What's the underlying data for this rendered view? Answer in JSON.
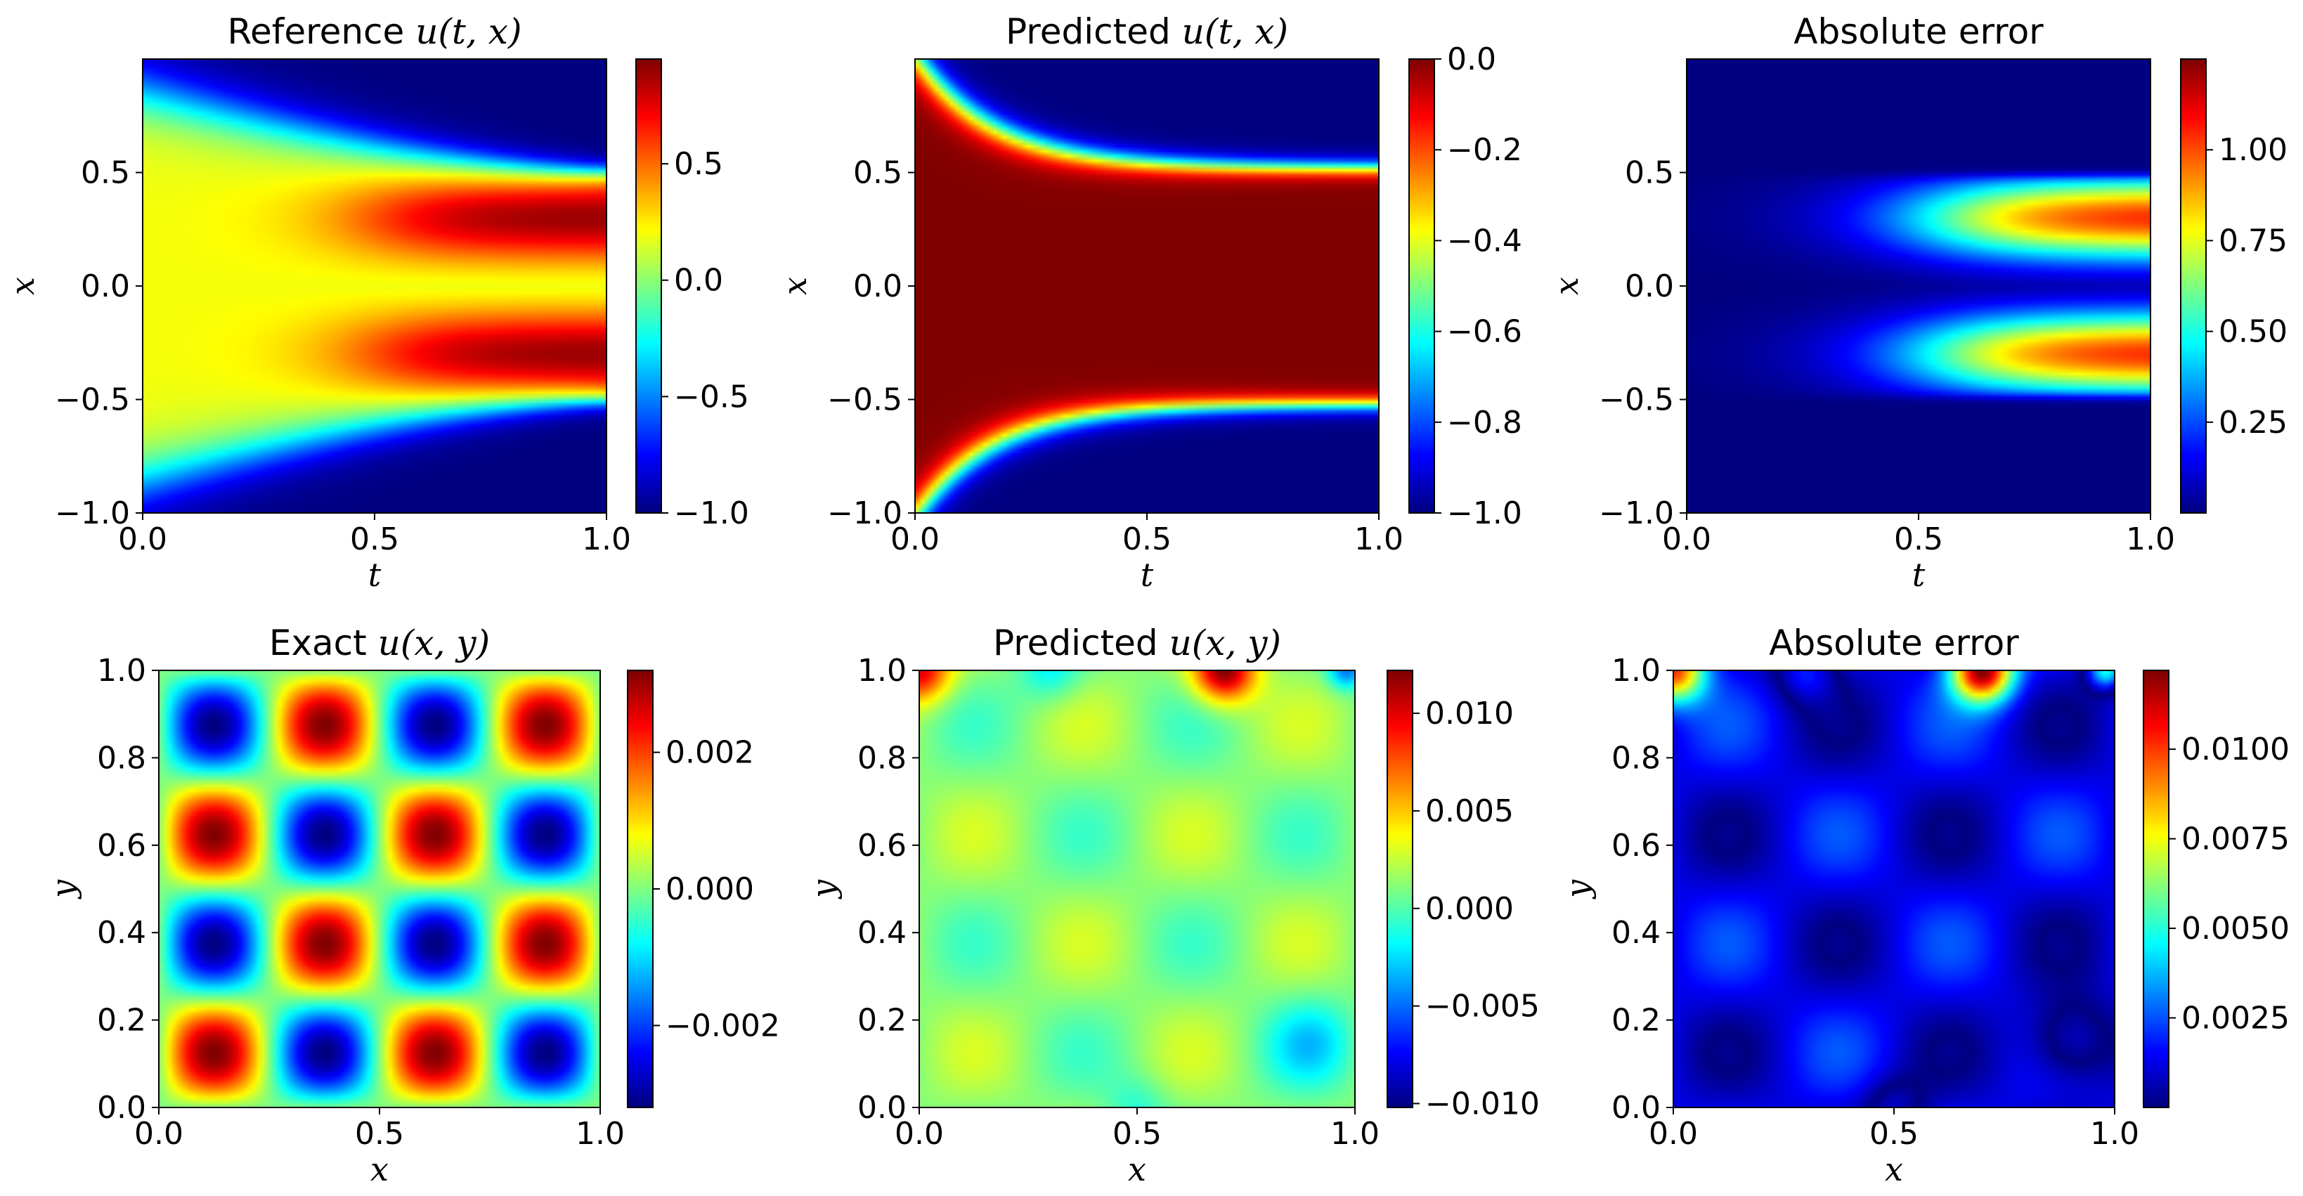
{
  "figure": {
    "description": "Six heatmap panels: two PDE benchmark problems; reference/exact solution, predicted solution and absolute error, each with a jet colorbar"
  },
  "colormap": "jet",
  "chart_data": [
    {
      "type": "heatmap",
      "id": "ref_tx",
      "title_prefix": "Reference ",
      "title_math": "u(t, x)",
      "xlabel": "t",
      "ylabel": "x",
      "xlim": [
        0.0,
        1.0
      ],
      "ylim": [
        -1.0,
        1.0
      ],
      "xticks": [
        "0.0",
        "0.5",
        "1.0"
      ],
      "xtick_values": [
        0.0,
        0.5,
        1.0
      ],
      "yticks": [
        "−1.0",
        "−0.5",
        "0.0",
        "0.5"
      ],
      "ytick_values": [
        -1.0,
        -0.5,
        0.0,
        0.5
      ],
      "clim": [
        -1.0,
        0.95
      ],
      "cbar_ticks": [
        "−1.0",
        "−0.5",
        "0.0",
        "0.5"
      ],
      "cbar_tick_values": [
        -1.0,
        -0.5,
        0.0,
        0.5
      ]
    },
    {
      "type": "heatmap",
      "id": "pred_tx",
      "title_prefix": "Predicted ",
      "title_math": "u(t, x)",
      "xlabel": "t",
      "ylabel": "x",
      "xlim": [
        0.0,
        1.0
      ],
      "ylim": [
        -1.0,
        1.0
      ],
      "xticks": [
        "0.0",
        "0.5",
        "1.0"
      ],
      "xtick_values": [
        0.0,
        0.5,
        1.0
      ],
      "yticks": [
        "−1.0",
        "−0.5",
        "0.0",
        "0.5"
      ],
      "ytick_values": [
        -1.0,
        -0.5,
        0.0,
        0.5
      ],
      "clim": [
        -1.0,
        0.0
      ],
      "cbar_ticks": [
        "−1.0",
        "−0.8",
        "−0.6",
        "−0.4",
        "−0.2",
        "0.0"
      ],
      "cbar_tick_values": [
        -1.0,
        -0.8,
        -0.6,
        -0.4,
        -0.2,
        0.0
      ]
    },
    {
      "type": "heatmap",
      "id": "err_tx",
      "title_prefix": "Absolute error",
      "title_math": "",
      "xlabel": "t",
      "ylabel": "x",
      "xlim": [
        0.0,
        1.0
      ],
      "ylim": [
        -1.0,
        1.0
      ],
      "xticks": [
        "0.0",
        "0.5",
        "1.0"
      ],
      "xtick_values": [
        0.0,
        0.5,
        1.0
      ],
      "yticks": [
        "−1.0",
        "−0.5",
        "0.0",
        "0.5"
      ],
      "ytick_values": [
        -1.0,
        -0.5,
        0.0,
        0.5
      ],
      "clim": [
        0.0,
        1.25
      ],
      "cbar_ticks": [
        "0.25",
        "0.50",
        "0.75",
        "1.00"
      ],
      "cbar_tick_values": [
        0.25,
        0.5,
        0.75,
        1.0
      ]
    },
    {
      "type": "heatmap",
      "id": "exact_xy",
      "title_prefix": "Exact ",
      "title_math": "u(x, y)",
      "xlabel": "x",
      "ylabel": "y",
      "xlim": [
        0.0,
        1.0
      ],
      "ylim": [
        0.0,
        1.0
      ],
      "xticks": [
        "0.0",
        "0.5",
        "1.0"
      ],
      "xtick_values": [
        0.0,
        0.5,
        1.0
      ],
      "yticks": [
        "0.0",
        "0.2",
        "0.4",
        "0.6",
        "0.8",
        "1.0"
      ],
      "ytick_values": [
        0.0,
        0.2,
        0.4,
        0.6,
        0.8,
        1.0
      ],
      "clim": [
        -0.0032,
        0.0032
      ],
      "cbar_ticks": [
        "−0.002",
        "0.000",
        "0.002"
      ],
      "cbar_tick_values": [
        -0.002,
        0.0,
        0.002
      ]
    },
    {
      "type": "heatmap",
      "id": "pred_xy",
      "title_prefix": "Predicted ",
      "title_math": "u(x, y)",
      "xlabel": "x",
      "ylabel": "y",
      "xlim": [
        0.0,
        1.0
      ],
      "ylim": [
        0.0,
        1.0
      ],
      "xticks": [
        "0.0",
        "0.5",
        "1.0"
      ],
      "xtick_values": [
        0.0,
        0.5,
        1.0
      ],
      "yticks": [
        "0.0",
        "0.2",
        "0.4",
        "0.6",
        "0.8",
        "1.0"
      ],
      "ytick_values": [
        0.0,
        0.2,
        0.4,
        0.6,
        0.8,
        1.0
      ],
      "clim": [
        -0.0102,
        0.0122
      ],
      "cbar_ticks": [
        "−0.010",
        "−0.005",
        "0.000",
        "0.005",
        "0.010"
      ],
      "cbar_tick_values": [
        -0.01,
        -0.005,
        0.0,
        0.005,
        0.01
      ]
    },
    {
      "type": "heatmap",
      "id": "err_xy",
      "title_prefix": "Absolute error",
      "title_math": "",
      "xlabel": "x",
      "ylabel": "y",
      "xlim": [
        0.0,
        1.0
      ],
      "ylim": [
        0.0,
        1.0
      ],
      "xticks": [
        "0.0",
        "0.5",
        "1.0"
      ],
      "xtick_values": [
        0.0,
        0.5,
        1.0
      ],
      "yticks": [
        "0.0",
        "0.2",
        "0.4",
        "0.6",
        "0.8",
        "1.0"
      ],
      "ytick_values": [
        0.0,
        0.2,
        0.4,
        0.6,
        0.8,
        1.0
      ],
      "clim": [
        0.0,
        0.0122
      ],
      "cbar_ticks": [
        "0.0025",
        "0.0050",
        "0.0075",
        "0.0100"
      ],
      "cbar_tick_values": [
        0.0025,
        0.005,
        0.0075,
        0.01
      ]
    }
  ]
}
